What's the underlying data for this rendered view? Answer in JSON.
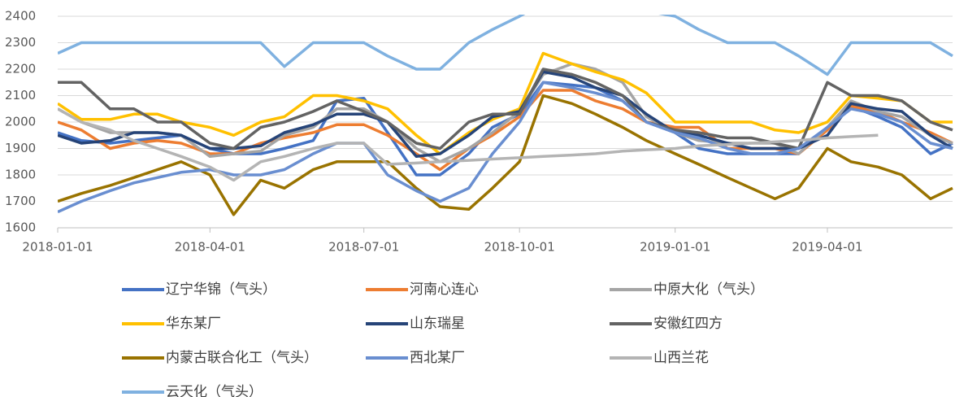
{
  "chart_data": {
    "type": "line",
    "x": [
      "2018-01-01",
      "2018-01-15",
      "2018-02-01",
      "2018-02-15",
      "2018-03-01",
      "2018-03-15",
      "2018-04-01",
      "2018-04-15",
      "2018-05-01",
      "2018-05-15",
      "2018-06-01",
      "2018-06-15",
      "2018-07-01",
      "2018-07-15",
      "2018-08-01",
      "2018-08-15",
      "2018-09-01",
      "2018-09-15",
      "2018-10-01",
      "2018-10-15",
      "2018-11-01",
      "2018-11-15",
      "2018-12-01",
      "2018-12-15",
      "2019-01-01",
      "2019-01-15",
      "2019-02-01",
      "2019-02-15",
      "2019-03-01",
      "2019-03-15",
      "2019-04-01",
      "2019-04-15",
      "2019-05-01",
      "2019-05-15",
      "2019-06-01",
      "2019-06-14"
    ],
    "xlim": [
      "2018-01-01",
      "2019-06-14"
    ],
    "xticks": [
      "2018-01-01",
      "2018-04-01",
      "2018-07-01",
      "2018-10-01",
      "2019-01-01",
      "2019-04-01"
    ],
    "ylim": [
      1600,
      2400
    ],
    "yticks": [
      1600,
      1700,
      1800,
      1900,
      2000,
      2100,
      2200,
      2300,
      2400
    ],
    "grid": true,
    "series": [
      {
        "name": "辽宁华锦（气头）",
        "color": "#4472c4",
        "values": [
          1960,
          1930,
          1920,
          1930,
          1940,
          1950,
          1900,
          1880,
          1880,
          1900,
          1930,
          2080,
          2090,
          1960,
          1800,
          1800,
          1880,
          1980,
          2030,
          2150,
          2140,
          2130,
          2080,
          2000,
          1960,
          1900,
          1880,
          1880,
          1880,
          1880,
          1980,
          2060,
          2020,
          1980,
          1880,
          1920
        ]
      },
      {
        "name": "河南心连心",
        "color": "#ed7d31",
        "values": [
          2000,
          1970,
          1900,
          1920,
          1930,
          1920,
          1880,
          1880,
          1920,
          1940,
          1960,
          1990,
          1990,
          1950,
          1880,
          1820,
          1900,
          1950,
          2020,
          2120,
          2120,
          2080,
          2050,
          2000,
          1980,
          1980,
          1900,
          1900,
          1900,
          1880,
          1970,
          2060,
          2040,
          2000,
          1960,
          1920
        ]
      },
      {
        "name": "中原大化（气头）",
        "color": "#a5a5a5",
        "values": [
          2050,
          2000,
          1960,
          1960,
          1960,
          1950,
          1870,
          1880,
          1890,
          1950,
          1980,
          2050,
          2050,
          2000,
          1900,
          1850,
          1900,
          1960,
          2040,
          2180,
          2220,
          2200,
          2150,
          2020,
          1960,
          1930,
          1920,
          1920,
          1920,
          1880,
          1980,
          2080,
          2040,
          2020,
          1950,
          1920
        ]
      },
      {
        "name": "华东某厂",
        "color": "#ffc000",
        "values": [
          2070,
          2010,
          2010,
          2030,
          2030,
          2000,
          1980,
          1950,
          2000,
          2020,
          2100,
          2100,
          2080,
          2050,
          1950,
          1880,
          1960,
          2010,
          2050,
          2260,
          2220,
          2190,
          2160,
          2110,
          2000,
          2000,
          2000,
          2000,
          1970,
          1960,
          2000,
          2100,
          2090,
          2080,
          2000,
          2000
        ]
      },
      {
        "name": "山东瑞星",
        "color": "#264478",
        "values": [
          1950,
          1920,
          1930,
          1960,
          1960,
          1950,
          1900,
          1900,
          1910,
          1960,
          1990,
          2030,
          2030,
          2000,
          1870,
          1880,
          1950,
          2020,
          2040,
          2190,
          2170,
          2130,
          2100,
          2030,
          1960,
          1950,
          1920,
          1900,
          1900,
          1900,
          1950,
          2070,
          2050,
          2040,
          1950,
          1900
        ]
      },
      {
        "name": "安徽红四方",
        "color": "#636363",
        "values": [
          2150,
          2150,
          2050,
          2050,
          2000,
          2000,
          1920,
          1900,
          1980,
          2000,
          2040,
          2080,
          2040,
          2000,
          1920,
          1900,
          2000,
          2030,
          2030,
          2200,
          2180,
          2150,
          2100,
          2000,
          1970,
          1960,
          1940,
          1940,
          1920,
          1900,
          2150,
          2100,
          2100,
          2080,
          2000,
          1970
        ]
      },
      {
        "name": "内蒙古联合化工（气头）",
        "color": "#997300",
        "values": [
          1700,
          1730,
          1760,
          1790,
          1820,
          1850,
          1800,
          1650,
          1780,
          1750,
          1820,
          1850,
          1850,
          1850,
          1750,
          1680,
          1670,
          1750,
          1850,
          2100,
          2070,
          2030,
          1980,
          1930,
          1880,
          1840,
          1790,
          1750,
          1710,
          1750,
          1900,
          1850,
          1830,
          1800,
          1710,
          1750
        ]
      },
      {
        "name": "西北某厂",
        "color": "#698ed0",
        "values": [
          1660,
          1700,
          1740,
          1770,
          1790,
          1810,
          1820,
          1800,
          1800,
          1820,
          1880,
          1920,
          1920,
          1800,
          1740,
          1700,
          1750,
          1880,
          2000,
          2150,
          2130,
          2110,
          2080,
          2000,
          1960,
          1940,
          1900,
          1880,
          1880,
          1900,
          1980,
          2050,
          2030,
          2000,
          1920,
          1900
        ]
      },
      {
        "name": "山西兰花",
        "color": "#b4b4b4",
        "values": [
          2050,
          2000,
          1970,
          1930,
          1900,
          1870,
          1830,
          1780,
          1850,
          1870,
          1900,
          1920,
          1920,
          1840,
          1845,
          1850,
          1855,
          1860,
          1865,
          1870,
          1875,
          1880,
          1890,
          1895,
          1900,
          1910,
          1915,
          1920,
          1925,
          1930,
          1940,
          1945,
          1950,
          null,
          null,
          null
        ]
      },
      {
        "name": "云天化（气头）",
        "color": "#7fb1e0",
        "values": [
          2260,
          2300,
          2300,
          2300,
          2300,
          2300,
          2300,
          2300,
          2300,
          2210,
          2300,
          2300,
          2300,
          2250,
          2200,
          2200,
          2300,
          2350,
          2400,
          2450,
          2450,
          2450,
          2450,
          2420,
          2400,
          2350,
          2300,
          2300,
          2300,
          2250,
          2180,
          2300,
          2300,
          2300,
          2300,
          2250
        ]
      }
    ]
  }
}
